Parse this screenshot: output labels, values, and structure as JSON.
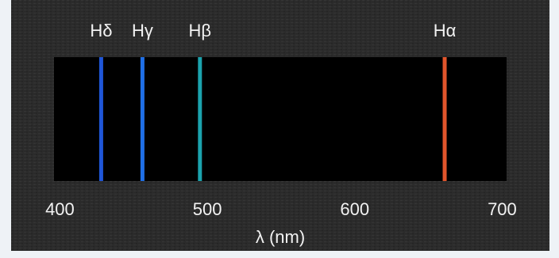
{
  "chart_data": {
    "type": "spectrum",
    "x_label": "λ (nm)",
    "series": [
      {
        "name": "Hδ",
        "x": 428,
        "color": "#1f56d8"
      },
      {
        "name": "Hγ",
        "x": 456,
        "color": "#1f6fe6"
      },
      {
        "name": "Hβ",
        "x": 495,
        "color": "#1ba3ad"
      },
      {
        "name": "Hα",
        "x": 661,
        "color": "#e2552b"
      }
    ],
    "xlim": [
      396,
      703
    ],
    "xticks": [
      400,
      500,
      600,
      700
    ]
  }
}
